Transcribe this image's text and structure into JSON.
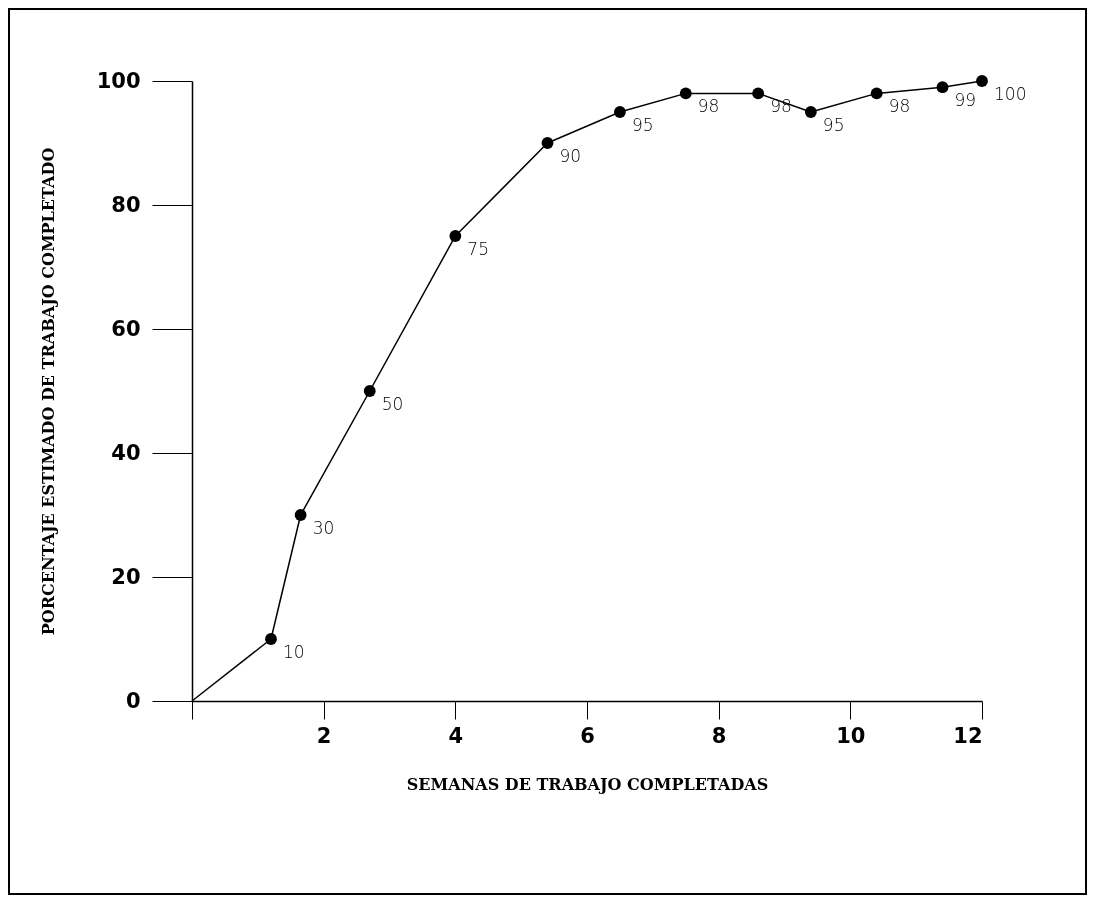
{
  "chart_data": {
    "type": "line",
    "xlabel": "SEMANAS DE TRABAJO COMPLETADAS",
    "ylabel": "PORCENTAJE ESTIMADO DE TRABAJO COMPLETADO",
    "xlim": [
      0,
      12
    ],
    "xticks": [
      {
        "value": 0,
        "label": null
      },
      2,
      4,
      6,
      8,
      10,
      12
    ],
    "ylim": [
      0,
      100
    ],
    "yticks": [
      0,
      20,
      40,
      60,
      80,
      100
    ],
    "grid": false,
    "series": [
      {
        "color": "#000000",
        "x": [
          0,
          1.2
        ],
        "values": [
          0,
          10
        ]
      },
      {
        "color": "#000000",
        "marker": "circle",
        "x": [
          1.2,
          1.65,
          2.7,
          4.0,
          5.4,
          6.5,
          7.5,
          8.6,
          9.4,
          10.4,
          11.4,
          12
        ],
        "values": [
          10,
          30,
          50,
          75,
          90,
          95,
          98,
          98,
          95,
          98,
          99,
          100
        ],
        "value_labels": [
          "10",
          "30",
          "50",
          "75",
          "90",
          "95",
          "98",
          "98",
          "95",
          "98",
          "99",
          "100"
        ]
      }
    ]
  }
}
